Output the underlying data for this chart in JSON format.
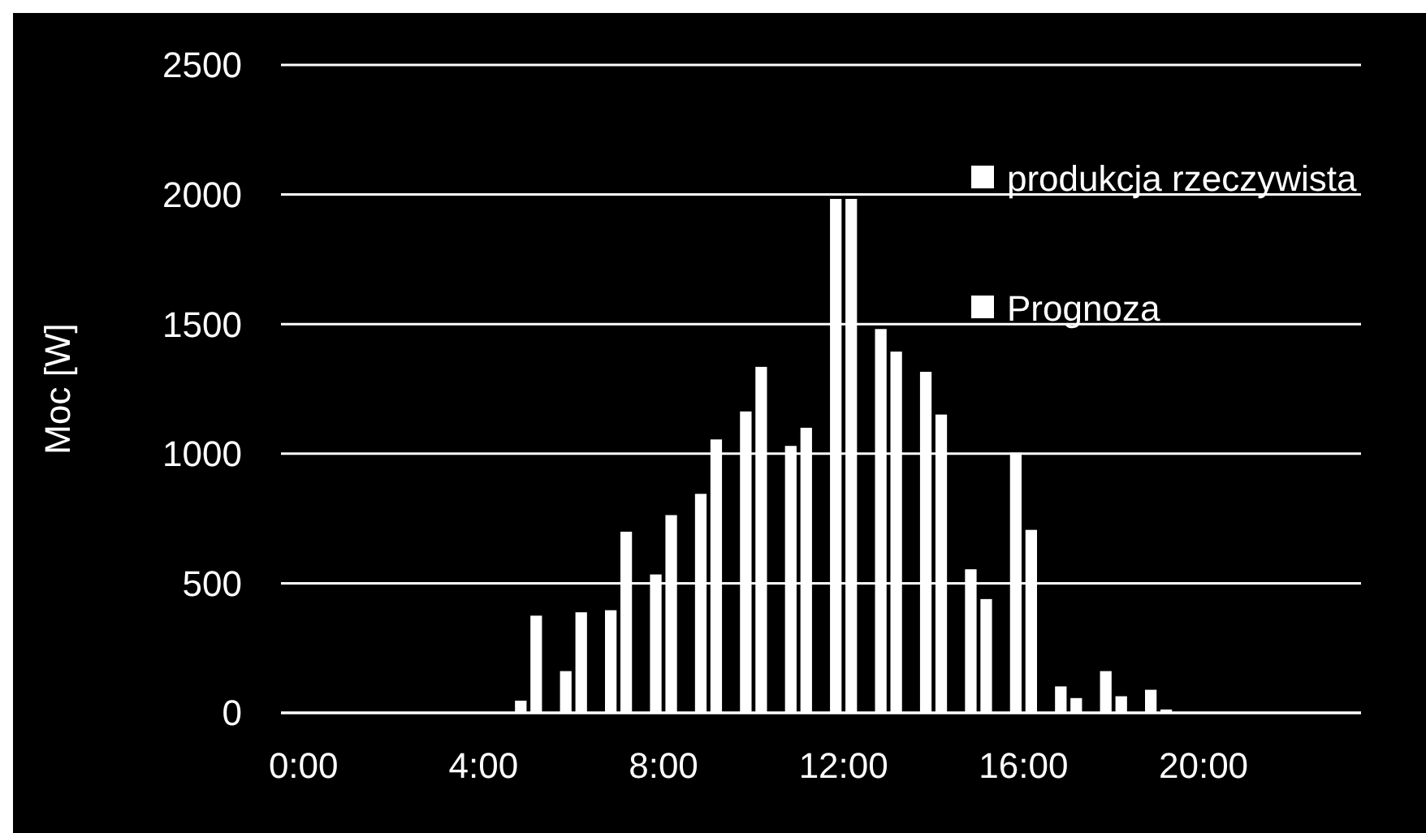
{
  "chart_data": {
    "type": "bar",
    "ylabel": "Moc [W]",
    "categories": [
      "0:00",
      null,
      null,
      null,
      "4:00",
      null,
      null,
      null,
      "8:00",
      null,
      null,
      null,
      "12:00",
      null,
      null,
      null,
      "16:00",
      null,
      null,
      null,
      "20:00",
      null,
      null,
      null
    ],
    "series": [
      {
        "name": "produkcja rzeczywista",
        "color": "#ffffff",
        "values": [
          0,
          0,
          0,
          0,
          0,
          47,
          161,
          396,
          534,
          845,
          1163,
          1030,
          1983,
          1481,
          1316,
          554,
          1004,
          102,
          161,
          89,
          0,
          0,
          0,
          0
        ]
      },
      {
        "name": "Prognoza",
        "color": "#ffffff",
        "values": [
          0,
          0,
          0,
          0,
          0,
          375,
          388,
          699,
          763,
          1055,
          1335,
          1100,
          1983,
          1394,
          1151,
          439,
          706,
          57,
          64,
          13,
          0,
          0,
          0,
          0
        ]
      }
    ],
    "ylim": [
      0,
      2500
    ],
    "yticks": [
      0,
      500,
      1000,
      1500,
      2000,
      2500
    ],
    "grid": "y",
    "legend": "top right"
  }
}
